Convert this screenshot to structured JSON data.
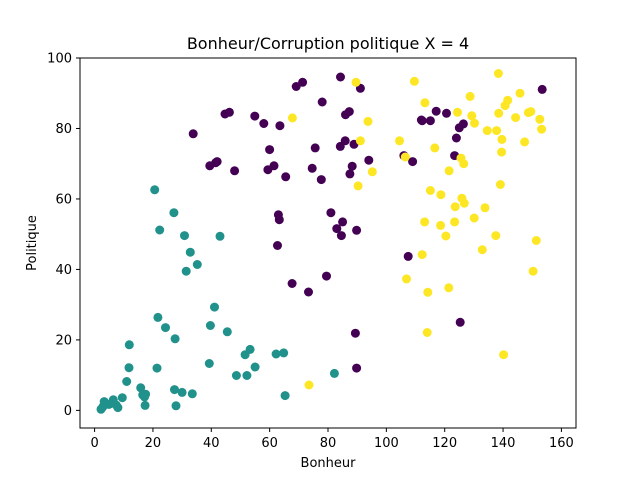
{
  "chart_data": {
    "type": "scatter",
    "title": "Bonheur/Corruption politique X = 4",
    "xlabel": "Bonheur",
    "ylabel": "Politique",
    "xlim": [
      -5,
      165
    ],
    "ylim": [
      -5,
      100
    ],
    "xticks": [
      "0",
      "20",
      "40",
      "60",
      "80",
      "100",
      "120",
      "140",
      "160"
    ],
    "yticks": [
      "0",
      "20",
      "40",
      "60",
      "80",
      "100"
    ],
    "grid": false,
    "series": [
      {
        "color": "#440154",
        "points": [
          [
            33.8,
            78.5
          ],
          [
            39.5,
            69.4
          ],
          [
            41.5,
            70.3
          ],
          [
            42,
            70.6
          ],
          [
            44.7,
            84.1
          ],
          [
            46.2,
            84.6
          ],
          [
            48,
            68
          ],
          [
            54.9,
            83.5
          ],
          [
            58,
            81.4
          ],
          [
            59.4,
            68.3
          ],
          [
            60,
            74
          ],
          [
            61.5,
            69.4
          ],
          [
            62.7,
            46.8
          ],
          [
            63,
            55.5
          ],
          [
            63.3,
            54.1
          ],
          [
            63.5,
            80.8
          ],
          [
            65.5,
            66.3
          ],
          [
            67.7,
            36
          ],
          [
            69.1,
            91.9
          ],
          [
            71.3,
            93.1
          ],
          [
            73.3,
            33.6
          ],
          [
            74.6,
            68.7
          ],
          [
            75.6,
            74.5
          ],
          [
            77.7,
            65.5
          ],
          [
            78,
            87.5
          ],
          [
            79.5,
            38.1
          ],
          [
            81,
            56.1
          ],
          [
            83,
            51.6
          ],
          [
            84.2,
            74.9
          ],
          [
            84.3,
            94.6
          ],
          [
            84.6,
            49.6
          ],
          [
            85,
            53.5
          ],
          [
            85.9,
            76.5
          ],
          [
            86,
            83.9
          ],
          [
            87.3,
            84.8
          ],
          [
            87.5,
            67.1
          ],
          [
            88.3,
            69.3
          ],
          [
            88.9,
            75.5
          ],
          [
            89.4,
            21.9
          ],
          [
            89.8,
            12
          ],
          [
            89.8,
            51.1
          ],
          [
            91.1,
            91.4
          ],
          [
            94,
            71
          ],
          [
            106,
            72.3
          ],
          [
            107.5,
            43.7
          ],
          [
            109,
            70.6
          ],
          [
            112,
            82.4
          ],
          [
            112.3,
            82.2
          ],
          [
            115.1,
            82.2
          ],
          [
            117.1,
            84.9
          ],
          [
            120.6,
            84.3
          ],
          [
            123.4,
            72.3
          ],
          [
            124,
            77.3
          ],
          [
            125,
            80.2
          ],
          [
            126.4,
            81.3
          ],
          [
            125.3,
            25
          ],
          [
            153.4,
            91.1
          ]
        ]
      },
      {
        "color": "#21918c",
        "points": [
          [
            2.2,
            0.3
          ],
          [
            2.8,
            1
          ],
          [
            3.3,
            2.5
          ],
          [
            4.9,
            1.7
          ],
          [
            6.4,
            3
          ],
          [
            7.4,
            1.5
          ],
          [
            8,
            0.8
          ],
          [
            9.5,
            3.6
          ],
          [
            11,
            8.2
          ],
          [
            11.8,
            12.1
          ],
          [
            11.9,
            18.6
          ],
          [
            15.8,
            6.4
          ],
          [
            16.5,
            4.4
          ],
          [
            17.1,
            3.8
          ],
          [
            17.3,
            1.4
          ],
          [
            17.5,
            4.6
          ],
          [
            20.6,
            62.6
          ],
          [
            21.4,
            12
          ],
          [
            21.7,
            26.4
          ],
          [
            22.3,
            51.2
          ],
          [
            24.3,
            23.5
          ],
          [
            27.2,
            56.1
          ],
          [
            27.4,
            5.9
          ],
          [
            27.6,
            20.3
          ],
          [
            27.9,
            1.3
          ],
          [
            30,
            5.1
          ],
          [
            30.8,
            49.6
          ],
          [
            31.4,
            39.5
          ],
          [
            32.8,
            44.9
          ],
          [
            33.5,
            4.7
          ],
          [
            35.2,
            41.4
          ],
          [
            39.3,
            13.3
          ],
          [
            39.7,
            24.1
          ],
          [
            41.1,
            29.3
          ],
          [
            43,
            49.4
          ],
          [
            45.5,
            22.3
          ],
          [
            48.6,
            9.9
          ],
          [
            51.6,
            15.8
          ],
          [
            52.2,
            9.9
          ],
          [
            53.3,
            17.3
          ],
          [
            55,
            12.3
          ],
          [
            62.2,
            16
          ],
          [
            64.8,
            16.3
          ],
          [
            65.3,
            4.2
          ],
          [
            82.2,
            10.5
          ]
        ]
      },
      {
        "color": "#fde725",
        "points": [
          [
            67.8,
            83
          ],
          [
            73.5,
            7.2
          ],
          [
            89.6,
            93.1
          ],
          [
            90.3,
            63.7
          ],
          [
            91.1,
            76.5
          ],
          [
            93.7,
            82
          ],
          [
            95.2,
            67.7
          ],
          [
            104.5,
            76.5
          ],
          [
            106.5,
            71.9
          ],
          [
            106.9,
            37.3
          ],
          [
            109.6,
            93.4
          ],
          [
            112.3,
            44.2
          ],
          [
            113.1,
            53.5
          ],
          [
            113.2,
            87.3
          ],
          [
            114,
            22.1
          ],
          [
            114.2,
            33.5
          ],
          [
            115.1,
            62.4
          ],
          [
            116.6,
            74.5
          ],
          [
            118.6,
            52.5
          ],
          [
            118.7,
            61.2
          ],
          [
            120.4,
            49.5
          ],
          [
            121.4,
            34.8
          ],
          [
            121.5,
            68
          ],
          [
            123.4,
            53.5
          ],
          [
            123.6,
            57.8
          ],
          [
            124.4,
            84.6
          ],
          [
            125.6,
            71.6
          ],
          [
            125.9,
            60.2
          ],
          [
            126.5,
            70
          ],
          [
            126.7,
            58.8
          ],
          [
            128.7,
            89.1
          ],
          [
            129.3,
            83.6
          ],
          [
            130.1,
            54.6
          ],
          [
            130.2,
            81.5
          ],
          [
            132.9,
            45.6
          ],
          [
            133.8,
            57.5
          ],
          [
            134.6,
            79.4
          ],
          [
            137.5,
            49.6
          ],
          [
            137.8,
            79.4
          ],
          [
            138.4,
            95.6
          ],
          [
            138.5,
            84.3
          ],
          [
            139.1,
            64.1
          ],
          [
            139.5,
            73.3
          ],
          [
            139.6,
            76.9
          ],
          [
            140.2,
            15.8
          ],
          [
            140.7,
            86.5
          ],
          [
            141.6,
            88
          ],
          [
            144.3,
            83.1
          ],
          [
            145.8,
            90
          ],
          [
            147.4,
            76.2
          ],
          [
            148.7,
            84.5
          ],
          [
            149.5,
            84.8
          ],
          [
            150.3,
            39.5
          ],
          [
            151.4,
            48.2
          ],
          [
            152.6,
            82.6
          ],
          [
            153.2,
            79.8
          ]
        ]
      }
    ]
  }
}
